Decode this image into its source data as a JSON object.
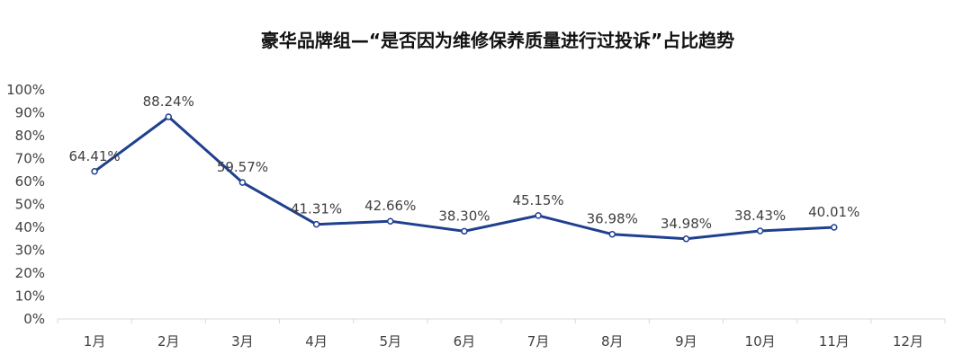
{
  "chart_data": {
    "type": "line",
    "title": "豪华品牌组—“是否因为维修保养质量进行过投诉”占比趋势",
    "xlabel": "",
    "ylabel": "",
    "categories": [
      "1月",
      "2月",
      "3月",
      "4月",
      "5月",
      "6月",
      "7月",
      "8月",
      "9月",
      "10月",
      "11月",
      "12月"
    ],
    "series": [
      {
        "values": [
          64.41,
          88.24,
          59.57,
          41.31,
          42.66,
          38.3,
          45.15,
          36.98,
          34.98,
          38.43,
          40.01,
          null
        ],
        "labels": [
          "64.41%",
          "88.24%",
          "59.57%",
          "41.31%",
          "42.66%",
          "38.30%",
          "45.15%",
          "36.98%",
          "34.98%",
          "38.43%",
          "40.01%",
          ""
        ]
      }
    ],
    "ylim": [
      0,
      100
    ],
    "yticks": [
      "0%",
      "10%",
      "20%",
      "30%",
      "40%",
      "50%",
      "60%",
      "70%",
      "80%",
      "90%",
      "100%"
    ],
    "grid": false,
    "legend": "none",
    "colors": {
      "line": "#1f3f8f",
      "marker_fill": "#ffffff",
      "axis": "#d9d9d9"
    }
  }
}
